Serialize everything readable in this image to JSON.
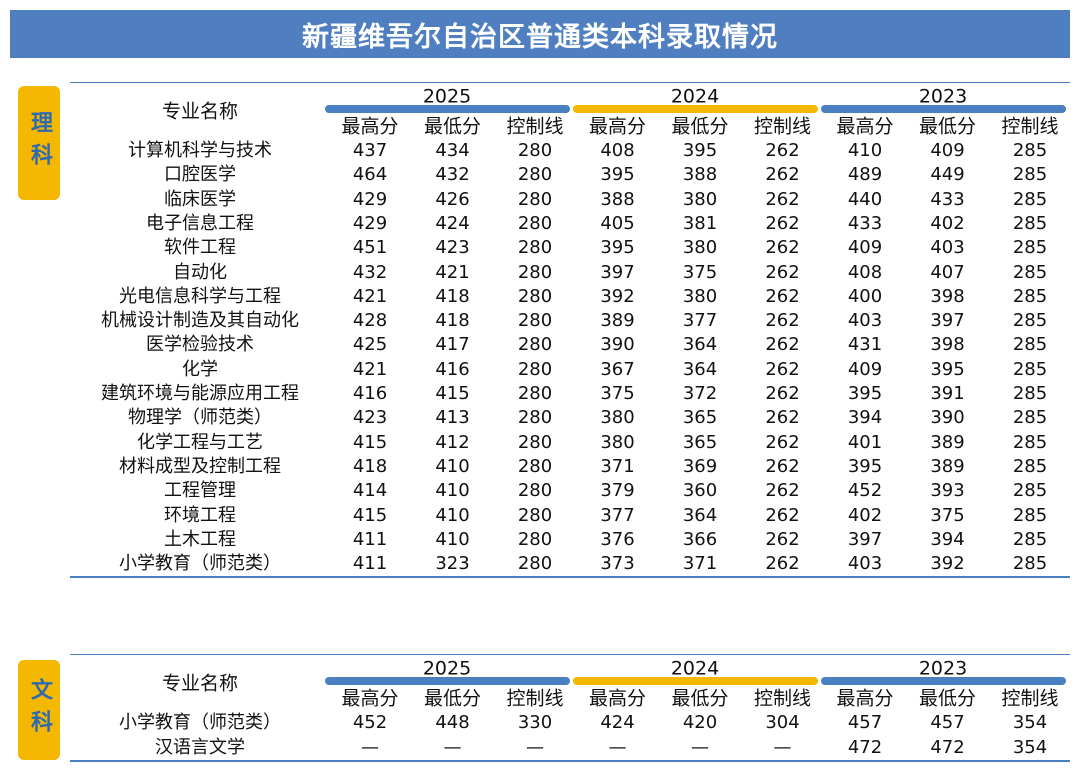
{
  "title": "新疆维吾尔自治区普通类本科录取情况",
  "sections": [
    {
      "label": "理科",
      "header": "专业名称",
      "years": [
        {
          "year": "2025",
          "color": "#4a7fc1",
          "columns": [
            "最高分",
            "最低分",
            "控制线"
          ]
        },
        {
          "year": "2024",
          "color": "#f5b800",
          "columns": [
            "最高分",
            "最低分",
            "控制线"
          ]
        },
        {
          "year": "2023",
          "color": "#4a7fc1",
          "columns": [
            "最高分",
            "最低分",
            "控制线"
          ]
        }
      ],
      "rows": [
        [
          "计算机科学与技术",
          437,
          434,
          280,
          408,
          395,
          262,
          410,
          409,
          285
        ],
        [
          "口腔医学",
          464,
          432,
          280,
          395,
          388,
          262,
          489,
          449,
          285
        ],
        [
          "临床医学",
          429,
          426,
          280,
          388,
          380,
          262,
          440,
          433,
          285
        ],
        [
          "电子信息工程",
          429,
          424,
          280,
          405,
          381,
          262,
          433,
          402,
          285
        ],
        [
          "软件工程",
          451,
          423,
          280,
          395,
          380,
          262,
          409,
          403,
          285
        ],
        [
          "自动化",
          432,
          421,
          280,
          397,
          375,
          262,
          408,
          407,
          285
        ],
        [
          "光电信息科学与工程",
          421,
          418,
          280,
          392,
          380,
          262,
          400,
          398,
          285
        ],
        [
          "机械设计制造及其自动化",
          428,
          418,
          280,
          389,
          377,
          262,
          403,
          397,
          285
        ],
        [
          "医学检验技术",
          425,
          417,
          280,
          390,
          364,
          262,
          431,
          398,
          285
        ],
        [
          "化学",
          421,
          416,
          280,
          367,
          364,
          262,
          409,
          395,
          285
        ],
        [
          "建筑环境与能源应用工程",
          416,
          415,
          280,
          375,
          372,
          262,
          395,
          391,
          285
        ],
        [
          "物理学（师范类）",
          423,
          413,
          280,
          380,
          365,
          262,
          394,
          390,
          285
        ],
        [
          "化学工程与工艺",
          415,
          412,
          280,
          380,
          365,
          262,
          401,
          389,
          285
        ],
        [
          "材料成型及控制工程",
          418,
          410,
          280,
          371,
          369,
          262,
          395,
          389,
          285
        ],
        [
          "工程管理",
          414,
          410,
          280,
          379,
          360,
          262,
          452,
          393,
          285
        ],
        [
          "环境工程",
          415,
          410,
          280,
          377,
          364,
          262,
          402,
          375,
          285
        ],
        [
          "土木工程",
          411,
          410,
          280,
          376,
          366,
          262,
          397,
          394,
          285
        ],
        [
          "小学教育（师范类）",
          411,
          323,
          280,
          373,
          371,
          262,
          403,
          392,
          285
        ]
      ]
    },
    {
      "label": "文科",
      "header": "专业名称",
      "years": [
        {
          "year": "2025",
          "color": "#4a7fc1",
          "columns": [
            "最高分",
            "最低分",
            "控制线"
          ]
        },
        {
          "year": "2024",
          "color": "#f5b800",
          "columns": [
            "最高分",
            "最低分",
            "控制线"
          ]
        },
        {
          "year": "2023",
          "color": "#4a7fc1",
          "columns": [
            "最高分",
            "最低分",
            "控制线"
          ]
        }
      ],
      "rows": [
        [
          "小学教育（师范类）",
          452,
          448,
          330,
          424,
          420,
          304,
          457,
          457,
          354
        ],
        [
          "汉语言文学",
          "—",
          "—",
          "—",
          "—",
          "—",
          "—",
          472,
          472,
          354
        ]
      ]
    }
  ]
}
